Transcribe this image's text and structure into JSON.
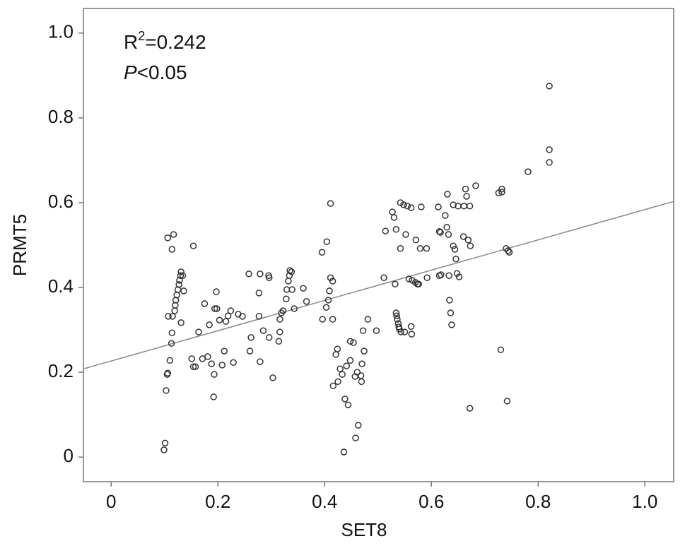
{
  "chart_data": {
    "type": "scatter",
    "xlabel": "SET8",
    "ylabel": "PRMT5",
    "annotations": [
      [
        "R",
        "2",
        "=0.242"
      ],
      [
        "P",
        "<0.05"
      ]
    ],
    "xlim": [
      -0.052,
      1.054
    ],
    "ylim": [
      -0.058,
      1.058
    ],
    "xticks": [
      0,
      0.2,
      0.4,
      0.6,
      0.8,
      {
        "value": 1,
        "label": "1.0"
      }
    ],
    "yticks": [
      0,
      0.2,
      0.4,
      0.6,
      0.8,
      {
        "value": 1,
        "label": "1.0"
      }
    ],
    "color": "#333333",
    "trendline": {
      "x": [
        -0.052,
        1.054
      ],
      "y": [
        0.208,
        0.603
      ],
      "color": "#888888"
    },
    "x": [
      0.099,
      0.101,
      0.103,
      0.105,
      0.106,
      0.11,
      0.113,
      0.114,
      0.107,
      0.106,
      0.117,
      0.114,
      0.115,
      0.119,
      0.12,
      0.121,
      0.123,
      0.125,
      0.127,
      0.128,
      0.13,
      0.131,
      0.134,
      0.136,
      0.131,
      0.154,
      0.151,
      0.154,
      0.158,
      0.164,
      0.171,
      0.175,
      0.181,
      0.184,
      0.188,
      0.193,
      0.192,
      0.194,
      0.198,
      0.197,
      0.203,
      0.208,
      0.212,
      0.215,
      0.219,
      0.224,
      0.229,
      0.238,
      0.246,
      0.258,
      0.26,
      0.262,
      0.277,
      0.277,
      0.279,
      0.279,
      0.285,
      0.295,
      0.296,
      0.296,
      0.303,
      0.314,
      0.316,
      0.316,
      0.319,
      0.322,
      0.328,
      0.329,
      0.332,
      0.334,
      0.335,
      0.338,
      0.339,
      0.343,
      0.36,
      0.366,
      0.395,
      0.396,
      0.404,
      0.403,
      0.407,
      0.409,
      0.411,
      0.411,
      0.415,
      0.415,
      0.416,
      0.421,
      0.424,
      0.425,
      0.429,
      0.433,
      0.436,
      0.438,
      0.441,
      0.444,
      0.448,
      0.448,
      0.454,
      0.457,
      0.458,
      0.461,
      0.463,
      0.468,
      0.469,
      0.47,
      0.472,
      0.474,
      0.481,
      0.497,
      0.511,
      0.514,
      0.527,
      0.53,
      0.532,
      0.534,
      0.534,
      0.535,
      0.536,
      0.538,
      0.539,
      0.54,
      0.543,
      0.542,
      0.542,
      0.548,
      0.55,
      0.552,
      0.555,
      0.558,
      0.562,
      0.562,
      0.563,
      0.564,
      0.57,
      0.574,
      0.576,
      0.571,
      0.579,
      0.581,
      0.591,
      0.592,
      0.613,
      0.615,
      0.617,
      0.615,
      0.618,
      0.626,
      0.629,
      0.63,
      0.632,
      0.633,
      0.634,
      0.636,
      0.638,
      0.641,
      0.641,
      0.644,
      0.646,
      0.648,
      0.652,
      0.65,
      0.661,
      0.66,
      0.664,
      0.666,
      0.669,
      0.672,
      0.673,
      0.672,
      0.683,
      0.726,
      0.73,
      0.732,
      0.732,
      0.74,
      0.742,
      0.744,
      0.746,
      0.781,
      0.821,
      0.821,
      0.821
    ],
    "y": [
      0.017,
      0.033,
      0.157,
      0.195,
      0.198,
      0.228,
      0.268,
      0.293,
      0.332,
      0.517,
      0.525,
      0.49,
      0.332,
      0.345,
      0.358,
      0.37,
      0.382,
      0.395,
      0.407,
      0.417,
      0.428,
      0.437,
      0.428,
      0.392,
      0.317,
      0.498,
      0.232,
      0.213,
      0.213,
      0.295,
      0.232,
      0.362,
      0.237,
      0.312,
      0.22,
      0.195,
      0.142,
      0.35,
      0.35,
      0.39,
      0.323,
      0.217,
      0.25,
      0.32,
      0.333,
      0.345,
      0.223,
      0.337,
      0.332,
      0.432,
      0.25,
      0.282,
      0.387,
      0.332,
      0.225,
      0.432,
      0.298,
      0.428,
      0.423,
      0.282,
      0.187,
      0.273,
      0.295,
      0.325,
      0.34,
      0.345,
      0.373,
      0.395,
      0.415,
      0.428,
      0.44,
      0.437,
      0.395,
      0.35,
      0.398,
      0.367,
      0.483,
      0.325,
      0.508,
      0.353,
      0.37,
      0.392,
      0.598,
      0.423,
      0.415,
      0.325,
      0.168,
      0.242,
      0.255,
      0.178,
      0.208,
      0.195,
      0.012,
      0.137,
      0.215,
      0.123,
      0.273,
      0.228,
      0.27,
      0.19,
      0.045,
      0.2,
      0.075,
      0.192,
      0.178,
      0.22,
      0.298,
      0.25,
      0.325,
      0.298,
      0.423,
      0.533,
      0.578,
      0.565,
      0.408,
      0.537,
      0.34,
      0.333,
      0.325,
      0.315,
      0.307,
      0.302,
      0.295,
      0.492,
      0.6,
      0.595,
      0.295,
      0.525,
      0.592,
      0.42,
      0.588,
      0.308,
      0.29,
      0.417,
      0.412,
      0.408,
      0.408,
      0.512,
      0.492,
      0.59,
      0.492,
      0.423,
      0.59,
      0.532,
      0.53,
      0.428,
      0.43,
      0.57,
      0.542,
      0.62,
      0.525,
      0.428,
      0.37,
      0.34,
      0.312,
      0.595,
      0.498,
      0.49,
      0.467,
      0.433,
      0.425,
      0.592,
      0.592,
      0.52,
      0.632,
      0.615,
      0.512,
      0.592,
      0.498,
      0.115,
      0.64,
      0.623,
      0.253,
      0.632,
      0.625,
      0.492,
      0.132,
      0.487,
      0.483,
      0.673,
      0.875,
      0.725,
      0.695
    ]
  }
}
